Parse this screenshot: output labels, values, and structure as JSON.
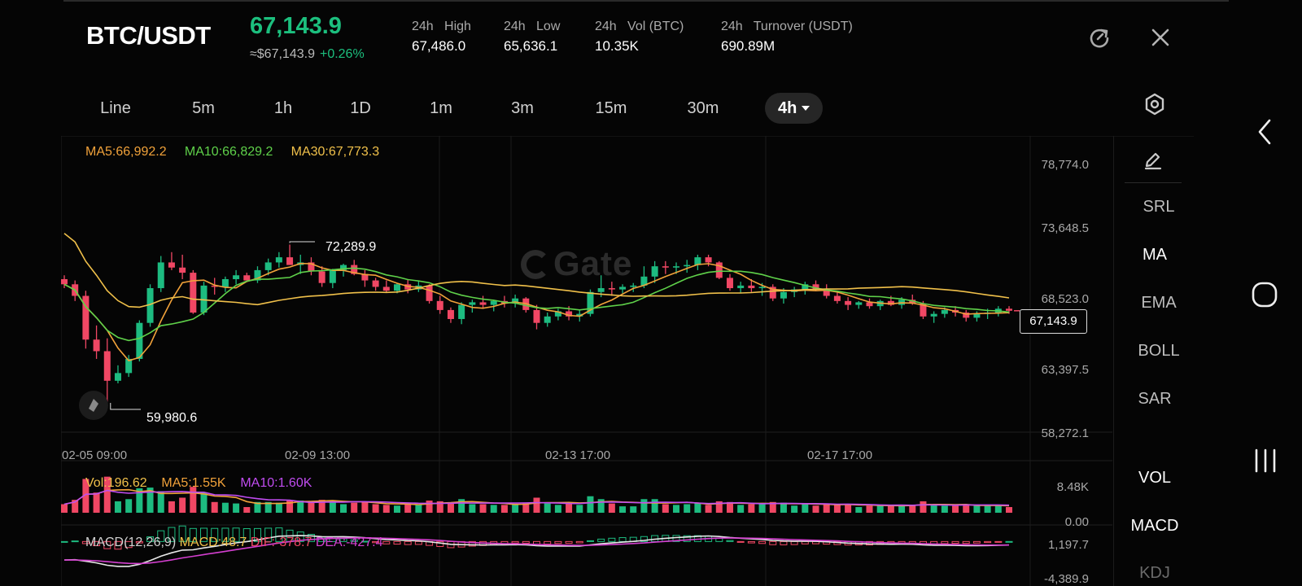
{
  "header": {
    "pair": "BTC/USDT",
    "price": "67,143.9",
    "price_usd": "≈$67,143.9",
    "change": "+0.26%",
    "stats": [
      {
        "label": "24h   High",
        "value": "67,486.0"
      },
      {
        "label": "24h   Low",
        "value": "65,636.1"
      },
      {
        "label": "24h   Vol (BTC)",
        "value": "10.35K"
      },
      {
        "label": "24h   Turnover (USDT)",
        "value": "690.89M"
      }
    ]
  },
  "intervals": [
    "Line",
    "5m",
    "1h",
    "1D",
    "1m",
    "3m",
    "15m",
    "30m"
  ],
  "active_interval": "4h",
  "ma_legend": {
    "ma5": "MA5:66,992.2",
    "ma10": "MA10:66,829.2",
    "ma30": "MA30:67,773.3"
  },
  "vol_legend": {
    "vol": "Vol:196.62",
    "ma5": "MA5:1.55K",
    "ma10": "MA10:1.60K"
  },
  "macd_legend": {
    "macd": "MACD(12,26,9)",
    "macd_val": "MACD:48.7",
    "dif": "DIF:-378.7",
    "dea": "DEA:-427.4"
  },
  "price_axis": [
    "78,774.0",
    "73,648.5",
    "68,523.0",
    "63,397.5",
    "58,272.1"
  ],
  "time_axis": [
    "02-05 09:00",
    "02-09 13:00",
    "02-13 17:00",
    "02-17 17:00"
  ],
  "vol_axis": [
    "8.48K",
    "0.00"
  ],
  "macd_axis": [
    "1,197.7",
    "-4,389.9"
  ],
  "current_price_tag": "67,143.9",
  "high_mark": "72,289.9",
  "low_mark": "59,980.6",
  "watermark": "Gate",
  "indicators_main": [
    "SRL",
    "MA",
    "EMA",
    "BOLL",
    "SAR"
  ],
  "indicators_sub": [
    "VOL",
    "MACD",
    "KDJ"
  ],
  "active_indicators": [
    "MA",
    "VOL",
    "MACD"
  ],
  "colors": {
    "up": "#1dbb80",
    "down": "#f04764",
    "ma5": "#f1a23a",
    "ma10": "#5fd14a",
    "ma30": "#f0c04a",
    "vol_ma10": "#c04cf0",
    "dif": "#e8e8e8",
    "dea": "#d43fd0"
  },
  "chart_data": {
    "type": "candlestick",
    "interval": "4h",
    "ylim": [
      58272.1,
      78774.0
    ],
    "candles_ohlc": [
      [
        69600,
        69900,
        68900,
        69200
      ],
      [
        69200,
        69500,
        67900,
        68300
      ],
      [
        68300,
        68700,
        64200,
        64900
      ],
      [
        64900,
        66000,
        63400,
        64000
      ],
      [
        64000,
        65000,
        59980.6,
        61700
      ],
      [
        61700,
        62900,
        61500,
        62300
      ],
      [
        62300,
        63700,
        62000,
        63400
      ],
      [
        63400,
        66400,
        63200,
        66200
      ],
      [
        66200,
        69200,
        65900,
        68900
      ],
      [
        68900,
        71400,
        68600,
        70900
      ],
      [
        70900,
        71700,
        70300,
        70500
      ],
      [
        70500,
        71500,
        69600,
        70100
      ],
      [
        70100,
        70300,
        66900,
        67000
      ],
      [
        67000,
        69400,
        66800,
        69100
      ],
      [
        69100,
        69700,
        68400,
        69000
      ],
      [
        69000,
        69800,
        68600,
        69600
      ],
      [
        69600,
        70300,
        69200,
        69900
      ],
      [
        69900,
        70100,
        69500,
        69500
      ],
      [
        69500,
        70600,
        69300,
        70300
      ],
      [
        70300,
        71200,
        69900,
        70900
      ],
      [
        70900,
        71700,
        70500,
        71300
      ],
      [
        71300,
        72289.9,
        70800,
        70700
      ],
      [
        70700,
        71500,
        70000,
        70900
      ],
      [
        70900,
        71300,
        69900,
        70200
      ],
      [
        70200,
        70600,
        69000,
        69300
      ],
      [
        69300,
        70400,
        68900,
        70300
      ],
      [
        70300,
        70800,
        69800,
        70700
      ],
      [
        70700,
        71100,
        69900,
        70000
      ],
      [
        70000,
        70300,
        69000,
        69500
      ],
      [
        69500,
        69700,
        68700,
        69000
      ],
      [
        69000,
        69500,
        68600,
        68700
      ],
      [
        68700,
        69300,
        68500,
        69200
      ],
      [
        69200,
        69600,
        68500,
        68800
      ],
      [
        68800,
        69500,
        68600,
        69100
      ],
      [
        69100,
        69200,
        67700,
        67900
      ],
      [
        67900,
        68300,
        66900,
        67200
      ],
      [
        67200,
        67400,
        66200,
        66500
      ],
      [
        66500,
        67800,
        66100,
        67600
      ],
      [
        67600,
        68000,
        67000,
        67800
      ],
      [
        67800,
        68300,
        67300,
        67600
      ],
      [
        67600,
        68000,
        67100,
        67900
      ],
      [
        67900,
        68300,
        67400,
        67700
      ],
      [
        67700,
        68400,
        67400,
        68100
      ],
      [
        68100,
        68200,
        67000,
        67200
      ],
      [
        67200,
        67600,
        65700,
        66200
      ],
      [
        66200,
        67000,
        65900,
        66700
      ],
      [
        66700,
        67300,
        66400,
        67100
      ],
      [
        67100,
        67500,
        66400,
        66700
      ],
      [
        66700,
        67200,
        66300,
        66900
      ],
      [
        66900,
        68800,
        66700,
        68600
      ],
      [
        68600,
        69900,
        68200,
        68900
      ],
      [
        68900,
        69400,
        68300,
        68800
      ],
      [
        68800,
        69200,
        68500,
        69000
      ],
      [
        69000,
        69300,
        68600,
        69100
      ],
      [
        69100,
        70600,
        68900,
        69800
      ],
      [
        69800,
        71000,
        69300,
        70600
      ],
      [
        70600,
        71000,
        70000,
        70500
      ],
      [
        70500,
        70900,
        70000,
        70600
      ],
      [
        70600,
        71100,
        70100,
        70700
      ],
      [
        70700,
        71500,
        70300,
        71300
      ],
      [
        71300,
        71500,
        70600,
        70900
      ],
      [
        70900,
        71000,
        69600,
        69700
      ],
      [
        69700,
        70000,
        68700,
        68900
      ],
      [
        68900,
        69400,
        68500,
        69100
      ],
      [
        69100,
        69600,
        68600,
        68900
      ],
      [
        68900,
        69300,
        68300,
        69000
      ],
      [
        69000,
        69200,
        67900,
        68100
      ],
      [
        68100,
        68900,
        67700,
        68600
      ],
      [
        68600,
        69000,
        68200,
        68800
      ],
      [
        68800,
        69400,
        68400,
        69200
      ],
      [
        69200,
        69500,
        68700,
        68800
      ],
      [
        68800,
        69200,
        68100,
        68300
      ],
      [
        68300,
        68600,
        67700,
        67900
      ],
      [
        67900,
        68200,
        67200,
        67600
      ],
      [
        67600,
        67900,
        67300,
        67800
      ],
      [
        67800,
        68100,
        67300,
        67500
      ],
      [
        67500,
        68000,
        67200,
        67900
      ],
      [
        67900,
        68300,
        67500,
        67600
      ],
      [
        67600,
        68200,
        67300,
        68000
      ],
      [
        68000,
        68400,
        67600,
        67700
      ],
      [
        67700,
        67900,
        66500,
        66700
      ],
      [
        66700,
        67100,
        66200,
        66900
      ],
      [
        66900,
        67400,
        66600,
        67200
      ],
      [
        67200,
        67500,
        66700,
        67000
      ],
      [
        67000,
        67200,
        66300,
        66600
      ],
      [
        66600,
        67100,
        66300,
        66900
      ],
      [
        66900,
        67300,
        66500,
        67000
      ],
      [
        67000,
        67500,
        66700,
        67300
      ],
      [
        67300,
        67500,
        66900,
        67143.9
      ]
    ],
    "volume_ylim": [
      0,
      8480
    ],
    "macd_ylim": [
      -4389.9,
      1197.7
    ]
  }
}
